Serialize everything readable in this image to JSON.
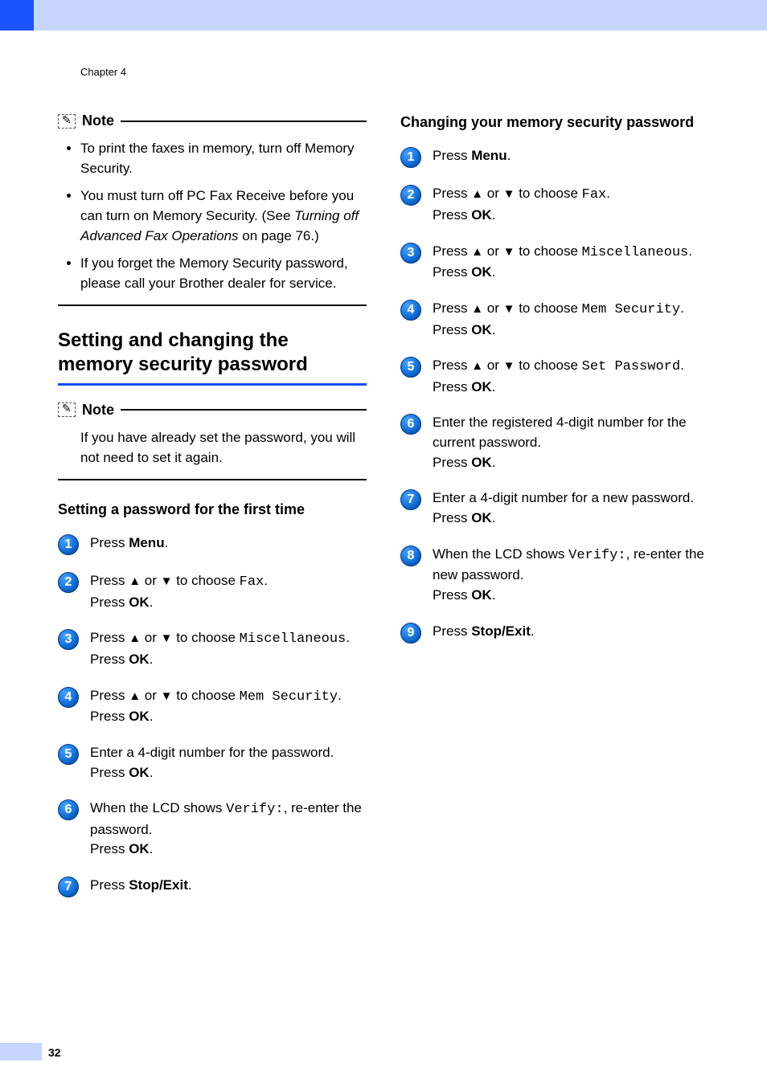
{
  "chapter": "Chapter 4",
  "page_number": "32",
  "colors": {
    "accent_blue": "#1b54ff",
    "light_blue": "#c6d6ff",
    "step_fill": "#1170d8",
    "step_stroke": "#003a8c"
  },
  "left": {
    "note1": {
      "title": "Note",
      "items": [
        {
          "text": "To print the faxes in memory, turn off Memory Security."
        },
        {
          "text_html": "You must turn off PC Fax Receive before you can turn on Memory Security. (See <span class=\"italic\">Turning off Advanced Fax Operations</span> on page 76.)"
        },
        {
          "text": "If you forget the Memory Security password, please call your Brother dealer for service."
        }
      ]
    },
    "section_title": "Setting and changing the memory security password",
    "note2": {
      "title": "Note",
      "text": "If you have already set the password, you will not need to set it again."
    },
    "sub_title": "Setting a password for the first time",
    "steps": [
      {
        "n": "1",
        "html": "Press <b>Menu</b>."
      },
      {
        "n": "2",
        "html": "Press <span class=\"arrow\">▲</span> or <span class=\"arrow\">▼</span> to choose <span class=\"mono\">Fax</span>.<br>Press <b>OK</b>."
      },
      {
        "n": "3",
        "html": "Press <span class=\"arrow\">▲</span> or <span class=\"arrow\">▼</span> to choose <span class=\"mono\">Miscellaneous</span>.<br>Press <b>OK</b>."
      },
      {
        "n": "4",
        "html": "Press <span class=\"arrow\">▲</span> or <span class=\"arrow\">▼</span> to choose <span class=\"mono\">Mem Security</span>.<br>Press <b>OK</b>."
      },
      {
        "n": "5",
        "html": "Enter a 4-digit number for the password.<br>Press <b>OK</b>."
      },
      {
        "n": "6",
        "html": "When the LCD shows <span class=\"mono\">Verify:</span>, re-enter the password.<br>Press <b>OK</b>."
      },
      {
        "n": "7",
        "html": "Press <b>Stop/Exit</b>."
      }
    ]
  },
  "right": {
    "sub_title": "Changing your memory security password",
    "steps": [
      {
        "n": "1",
        "html": "Press <b>Menu</b>."
      },
      {
        "n": "2",
        "html": "Press <span class=\"arrow\">▲</span> or <span class=\"arrow\">▼</span> to choose <span class=\"mono\">Fax</span>.<br>Press <b>OK</b>."
      },
      {
        "n": "3",
        "html": "Press <span class=\"arrow\">▲</span> or <span class=\"arrow\">▼</span> to choose <span class=\"mono\">Miscellaneous</span>.<br>Press <b>OK</b>."
      },
      {
        "n": "4",
        "html": "Press <span class=\"arrow\">▲</span> or <span class=\"arrow\">▼</span> to choose <span class=\"mono\">Mem Security</span>.<br>Press <b>OK</b>."
      },
      {
        "n": "5",
        "html": "Press <span class=\"arrow\">▲</span> or <span class=\"arrow\">▼</span> to choose <span class=\"mono\">Set Password</span>.<br>Press <b>OK</b>."
      },
      {
        "n": "6",
        "html": "Enter the registered 4-digit number for the current password.<br>Press <b>OK</b>."
      },
      {
        "n": "7",
        "html": "Enter a 4-digit number for a new password.<br>Press <b>OK</b>."
      },
      {
        "n": "8",
        "html": "When the LCD shows <span class=\"mono\">Verify:</span>, re-enter the new password.<br>Press <b>OK</b>."
      },
      {
        "n": "9",
        "html": "Press <b>Stop/Exit</b>."
      }
    ]
  }
}
